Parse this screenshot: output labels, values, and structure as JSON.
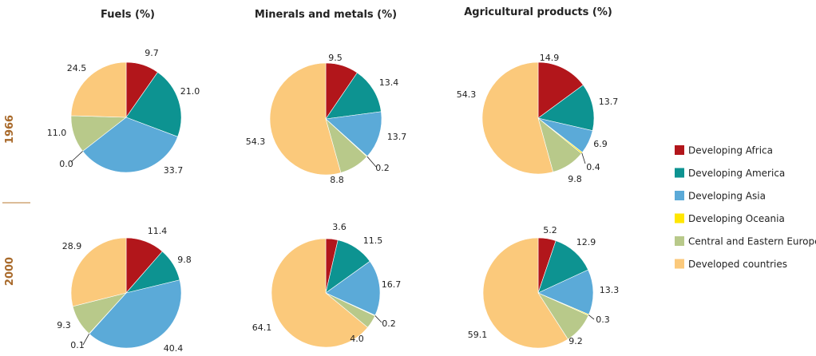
{
  "columns": [
    "Fuels (%)",
    "Minerals and metals (%)",
    "Agricultural products (%)"
  ],
  "rows": [
    "1966",
    "2000"
  ],
  "legend": [
    {
      "label": "Developing Africa",
      "color": "#b2161b"
    },
    {
      "label": "Developing America",
      "color": "#0d9391"
    },
    {
      "label": "Developing Asia",
      "color": "#5baad8"
    },
    {
      "label": "Developing Oceania",
      "color": "#ffe600"
    },
    {
      "label": "Central and Eastern Europe",
      "color": "#b8c98a"
    },
    {
      "label": "Developed countries",
      "color": "#fbc97b"
    }
  ],
  "colors": {
    "row_label": "#a8692a",
    "divider": "#c8935a",
    "slice_border": "#ffffff"
  },
  "chart_data": [
    {
      "type": "pie",
      "title": "Fuels (%)",
      "year": "1966",
      "values": [
        9.7,
        21.0,
        33.7,
        0.0,
        11.0,
        24.5
      ],
      "labels": [
        "9.7",
        "21.0",
        "33.7",
        "0.0",
        "11.0",
        "24.5"
      ]
    },
    {
      "type": "pie",
      "title": "Minerals and metals (%)",
      "year": "1966",
      "values": [
        9.5,
        13.4,
        13.7,
        0.2,
        8.8,
        54.3
      ],
      "labels": [
        "9.5",
        "13.4",
        "13.7",
        "0.2",
        "8.8",
        "54.3"
      ]
    },
    {
      "type": "pie",
      "title": "Agricultural products (%)",
      "year": "1966",
      "values": [
        14.9,
        13.7,
        6.9,
        0.4,
        9.8,
        54.3
      ],
      "labels": [
        "14.9",
        "13.7",
        "6.9",
        "0.4",
        "9.8",
        "54.3"
      ]
    },
    {
      "type": "pie",
      "title": "Fuels (%)",
      "year": "2000",
      "values": [
        11.4,
        9.8,
        40.4,
        0.1,
        9.3,
        28.9
      ],
      "labels": [
        "11.4",
        "9.8",
        "40.4",
        "0.1",
        "9.3",
        "28.9"
      ]
    },
    {
      "type": "pie",
      "title": "Minerals and metals (%)",
      "year": "2000",
      "values": [
        3.6,
        11.5,
        16.7,
        0.2,
        4.0,
        64.1
      ],
      "labels": [
        "3.6",
        "11.5",
        "16.7",
        "0.2",
        "4.0",
        "64.1"
      ]
    },
    {
      "type": "pie",
      "title": "Agricultural products (%)",
      "year": "2000",
      "values": [
        5.2,
        12.9,
        13.3,
        0.3,
        9.2,
        59.1
      ],
      "labels": [
        "5.2",
        "12.9",
        "13.3",
        "0.3",
        "9.2",
        "59.1"
      ]
    }
  ]
}
